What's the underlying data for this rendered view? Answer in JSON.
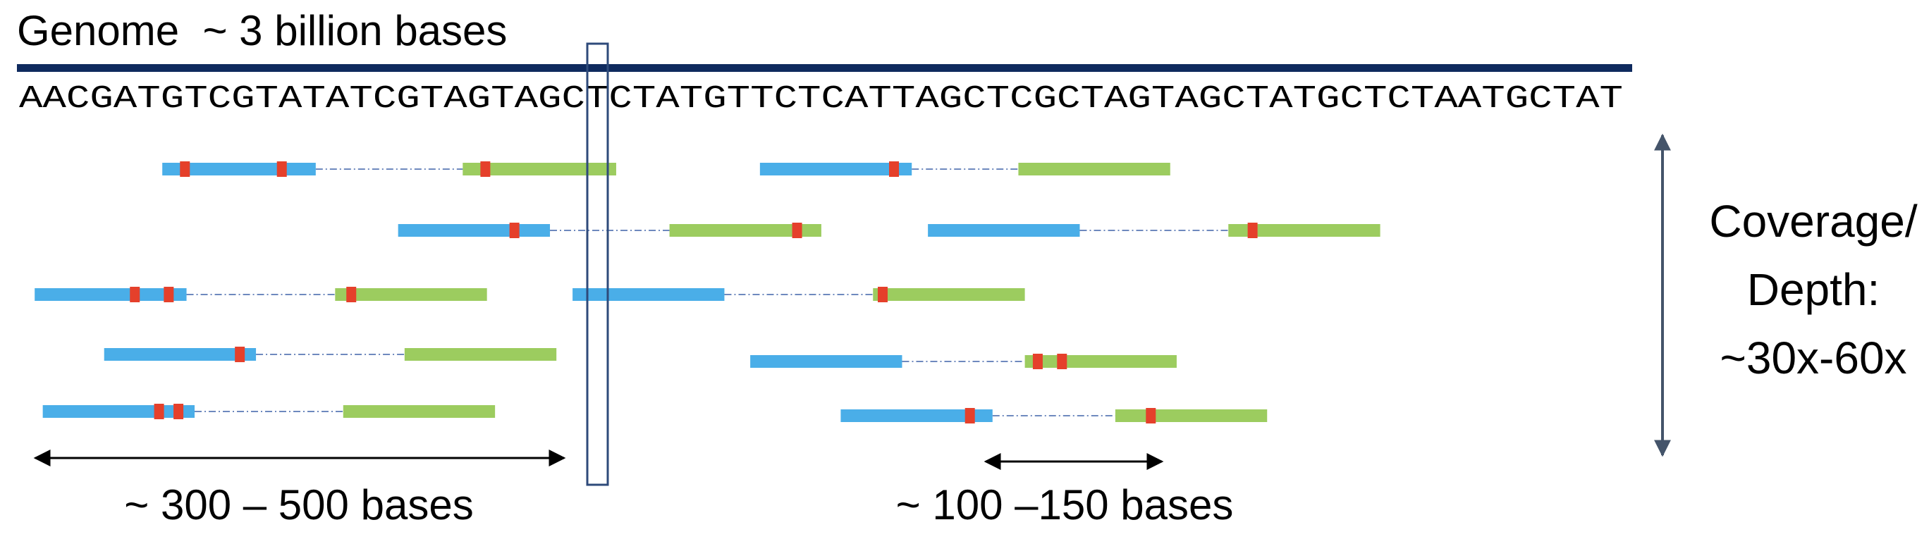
{
  "title": "Genome  ~ 3 billion bases",
  "sequence": "AACGATGTCGTATATCGTAGTAGCTCTATGTTCTCATTAGCTCGCTAGTAGCTATGCTCTAATGCTAT",
  "coverage_label_lines": [
    "Coverage/",
    "Depth:",
    "~30x-60x"
  ],
  "long_fragment_label": "~ 300 – 500 bases",
  "short_read_label": "~ 100 –150 bases",
  "colors": {
    "genome_bar": "#0f2a5e",
    "read1": "#4aaee8",
    "read2": "#9ccc5f",
    "variant": "#e5402b",
    "highlight_box": "#2e4a7a",
    "insert_line": "#3e62a8",
    "arrow": "#000000",
    "coverage_arrow": "#44546a"
  },
  "read_pairs": [
    {
      "read1": [
        0.09,
        0.185
      ],
      "read2": [
        0.276,
        0.371
      ],
      "variants": [
        0.104,
        0.164,
        0.29
      ]
    },
    {
      "read1": [
        0.236,
        0.33
      ],
      "read2": [
        0.404,
        0.498
      ],
      "variants": [
        0.308,
        0.483
      ]
    },
    {
      "read1": [
        0.011,
        0.105
      ],
      "read2": [
        0.197,
        0.291
      ],
      "variants": [
        0.073,
        0.094,
        0.207
      ]
    },
    {
      "read1": [
        0.054,
        0.148
      ],
      "read2": [
        0.24,
        0.334
      ],
      "variants": [
        0.138
      ]
    },
    {
      "read1": [
        0.016,
        0.11
      ],
      "read2": [
        0.202,
        0.296
      ],
      "variants": [
        0.088,
        0.1
      ]
    },
    {
      "read1": [
        0.46,
        0.554
      ],
      "read2": [
        0.62,
        0.714
      ],
      "variants": [
        0.543
      ]
    },
    {
      "read1": [
        0.564,
        0.658
      ],
      "read2": [
        0.75,
        0.844
      ],
      "variants": [
        0.765
      ]
    },
    {
      "read1": [
        0.344,
        0.438
      ],
      "read2": [
        0.53,
        0.624
      ],
      "variants": [
        0.536
      ]
    },
    {
      "read1": [
        0.454,
        0.548
      ],
      "read2": [
        0.624,
        0.718
      ],
      "variants": [
        0.632,
        0.647
      ]
    },
    {
      "read1": [
        0.51,
        0.604
      ],
      "read2": [
        0.68,
        0.774
      ],
      "variants": [
        0.59,
        0.702
      ]
    }
  ],
  "highlighted_position": 0.31
}
